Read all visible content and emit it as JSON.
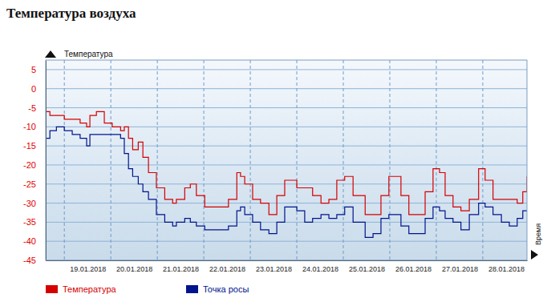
{
  "chart_data": {
    "type": "line",
    "title": "Температура воздуха",
    "ylabel": "Температура",
    "xlabel": "Время",
    "x": [
      18.6,
      18.69,
      18.83,
      19.0,
      19.17,
      19.34,
      19.48,
      19.55,
      19.69,
      19.86,
      20.03,
      20.21,
      20.29,
      20.38,
      20.47,
      20.59,
      20.69,
      20.81,
      20.98,
      21.16,
      21.33,
      21.41,
      21.59,
      21.71,
      21.84,
      22.02,
      22.28,
      22.53,
      22.71,
      22.79,
      22.88,
      23.05,
      23.22,
      23.4,
      23.57,
      23.74,
      24.0,
      24.17,
      24.34,
      24.52,
      24.69,
      24.86,
      25.03,
      25.21,
      25.47,
      25.64,
      25.81,
      25.98,
      26.07,
      26.24,
      26.41,
      26.59,
      26.76,
      26.93,
      27.07,
      27.19,
      27.36,
      27.53,
      27.71,
      27.91,
      28.05,
      28.22,
      28.4,
      28.57,
      28.74,
      28.86,
      28.95
    ],
    "xlim": [
      18.6,
      28.95
    ],
    "xticks": [
      {
        "value": 19,
        "label": "19.01.2018"
      },
      {
        "value": 20,
        "label": "20.01.2018"
      },
      {
        "value": 21,
        "label": "21.01.2018"
      },
      {
        "value": 22,
        "label": "22.01.2018"
      },
      {
        "value": 23,
        "label": "23.01.2018"
      },
      {
        "value": 24,
        "label": "24.01.2018"
      },
      {
        "value": 25,
        "label": "25.01.2018"
      },
      {
        "value": 26,
        "label": "26.01.2018"
      },
      {
        "value": 27,
        "label": "27.01.2018"
      },
      {
        "value": 28,
        "label": "28.01.2018"
      }
    ],
    "ylim": [
      -45,
      7.5
    ],
    "yticks": [
      5,
      0,
      -5,
      -10,
      -15,
      -20,
      -25,
      -30,
      -35,
      -40,
      -45
    ],
    "grid": true,
    "legend": "bottom",
    "line_style": "step",
    "series": [
      {
        "name": "Температура",
        "color": "#d40000",
        "values": [
          -6,
          -7,
          -7,
          -8,
          -8,
          -9,
          -10,
          -7,
          -6,
          -9,
          -10,
          -11,
          -10,
          -13,
          -16,
          -14,
          -18,
          -22,
          -26,
          -29,
          -30,
          -29,
          -26,
          -25,
          -28,
          -31,
          -31,
          -29,
          -22,
          -23,
          -25,
          -29,
          -30,
          -33,
          -28,
          -24,
          -26,
          -26,
          -28,
          -30,
          -29,
          -24,
          -23,
          -28,
          -33,
          -33,
          -28,
          -23,
          -23,
          -28,
          -33,
          -33,
          -27,
          -21,
          -22,
          -28,
          -31,
          -32,
          -29,
          -21,
          -24,
          -29,
          -29,
          -29,
          -30,
          -27,
          -23
        ]
      },
      {
        "name": "Точка росы",
        "color": "#00148c",
        "values": [
          -13,
          -11,
          -10,
          -11,
          -12,
          -13,
          -15,
          -12,
          -12,
          -12,
          -12,
          -13,
          -17,
          -21,
          -23,
          -25,
          -27,
          -29,
          -33,
          -35,
          -36,
          -35,
          -34,
          -35,
          -36,
          -37,
          -37,
          -36,
          -32,
          -31,
          -33,
          -35,
          -37,
          -38,
          -35,
          -31,
          -32,
          -35,
          -34,
          -33,
          -34,
          -33,
          -31,
          -35,
          -39,
          -38,
          -34,
          -33,
          -33,
          -36,
          -38,
          -38,
          -34,
          -31,
          -32,
          -34,
          -35,
          -37,
          -33,
          -30,
          -31,
          -33,
          -35,
          -36,
          -34,
          -32,
          -32
        ]
      }
    ]
  }
}
